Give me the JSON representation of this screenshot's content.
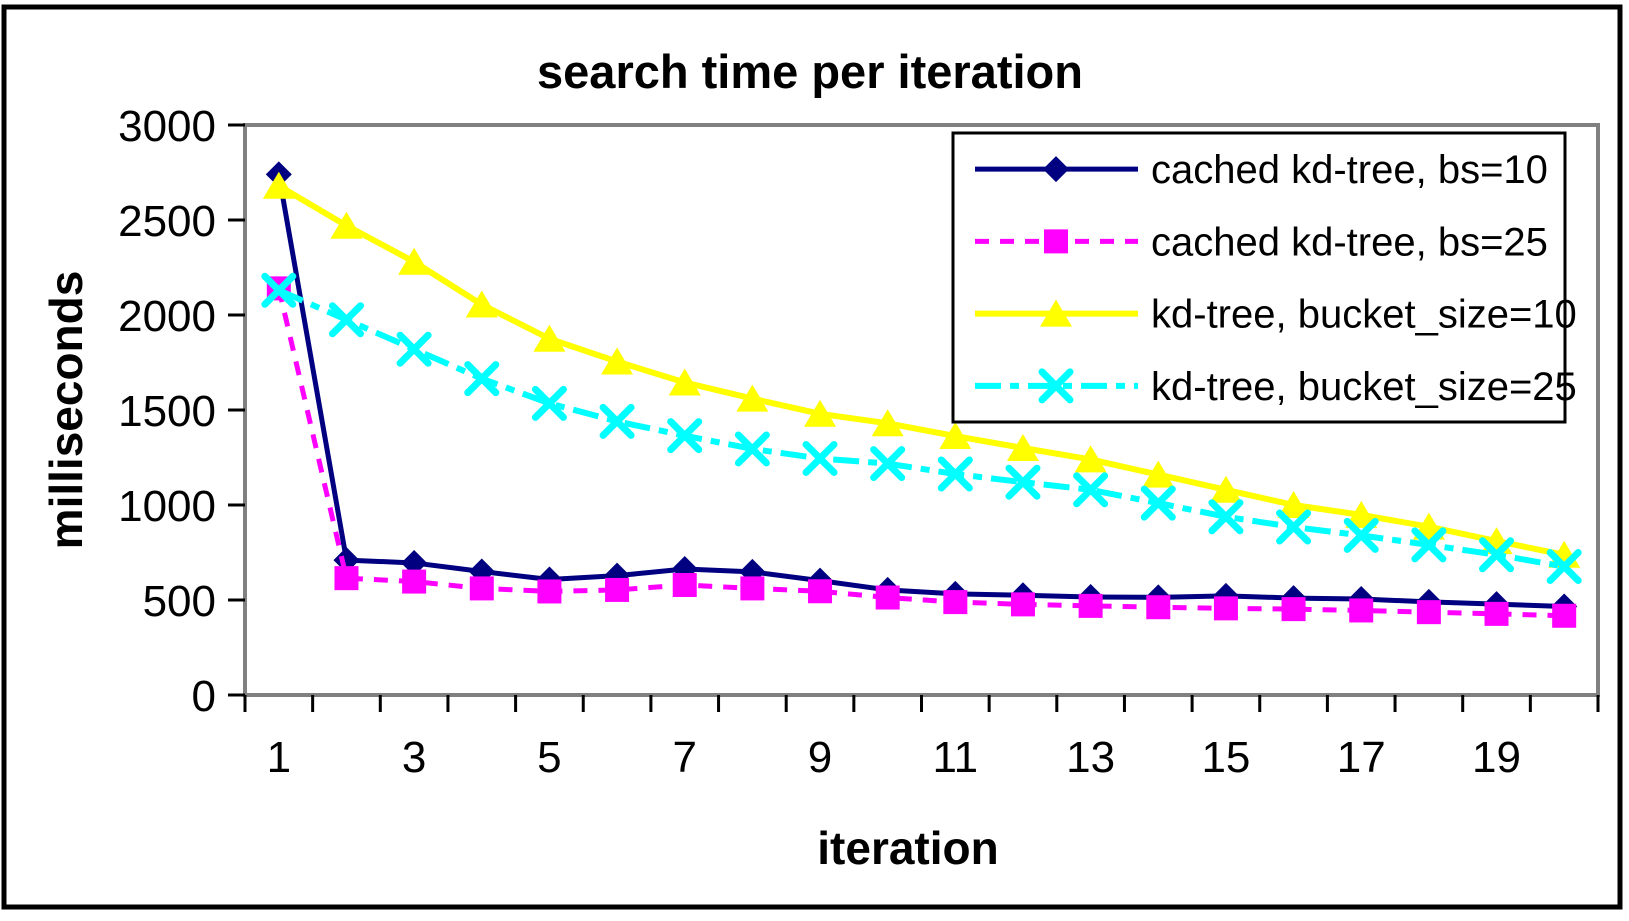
{
  "title": "search time per iteration",
  "axes": {
    "y_label": "milliseconds",
    "x_label": "iteration",
    "y_ticks": [
      0,
      500,
      1000,
      1500,
      2000,
      2500,
      3000
    ],
    "x_tick_labels": [
      1,
      3,
      5,
      7,
      9,
      11,
      13,
      15,
      17,
      19
    ]
  },
  "colors": {
    "navy": "#000080",
    "magenta": "#FF00FF",
    "yellow": "#FFFF00",
    "cyan": "#00FFFF",
    "plot_border": "#808080",
    "outer_border": "#000000",
    "background": "#FFFFFF"
  },
  "chart_data": {
    "type": "line",
    "title": "search time per iteration",
    "xlabel": "iteration",
    "ylabel": "milliseconds",
    "x": [
      1,
      2,
      3,
      4,
      5,
      6,
      7,
      8,
      9,
      10,
      11,
      12,
      13,
      14,
      15,
      16,
      17,
      18,
      19,
      20
    ],
    "ylim": [
      0,
      3000
    ],
    "y_tick_step": 500,
    "x_ticks_labeled": [
      1,
      3,
      5,
      7,
      9,
      11,
      13,
      15,
      17,
      19
    ],
    "grid": false,
    "legend_position": "top-right",
    "series": [
      {
        "name": "cached kd-tree, bs=10",
        "color": "#000080",
        "line": "solid",
        "marker": "diamond",
        "values": [
          2740,
          710,
          695,
          650,
          608,
          628,
          663,
          648,
          602,
          553,
          532,
          525,
          516,
          514,
          522,
          510,
          505,
          490,
          478,
          466
        ]
      },
      {
        "name": "cached kd-tree, bs=25",
        "color": "#FF00FF",
        "line": "dashed",
        "marker": "square",
        "values": [
          2140,
          615,
          597,
          561,
          545,
          553,
          579,
          561,
          546,
          513,
          489,
          477,
          469,
          462,
          456,
          452,
          445,
          436,
          427,
          417
        ]
      },
      {
        "name": "kd-tree, bucket_size=10",
        "color": "#FFFF00",
        "line": "solid",
        "marker": "triangle",
        "values": [
          2680,
          2470,
          2280,
          2055,
          1875,
          1755,
          1645,
          1560,
          1480,
          1430,
          1363,
          1300,
          1240,
          1160,
          1080,
          1000,
          948,
          886,
          810,
          738
        ]
      },
      {
        "name": "kd-tree, bucket_size=25",
        "color": "#00FFFF",
        "line": "dash-dot",
        "marker": "x",
        "values": [
          2130,
          1975,
          1820,
          1665,
          1535,
          1440,
          1365,
          1295,
          1245,
          1218,
          1163,
          1120,
          1080,
          1010,
          938,
          884,
          840,
          790,
          738,
          676
        ]
      }
    ]
  }
}
